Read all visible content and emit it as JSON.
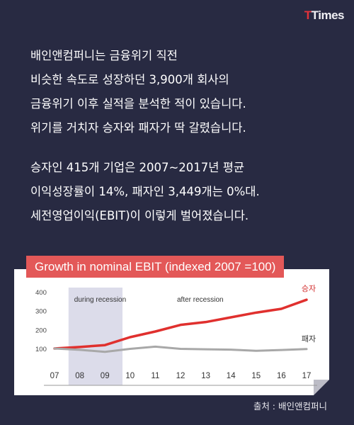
{
  "logo": {
    "prefix": "T",
    "rest": "Times"
  },
  "body_text": {
    "paragraph1": [
      "배인앤컴퍼니는 금융위기 직전",
      "비슷한 속도로 성장하던 3,900개 회사의",
      "금융위기 이후 실적을 분석한 적이 있습니다.",
      "위기를 거치자 승자와 패자가 딱 갈렸습니다."
    ],
    "paragraph2": [
      "승자인 415개 기업은 2007~2017년 평균",
      "이익성장률이 14%, 패자인 3,449개는 0%대.",
      "세전영업이익(EBIT)이 이렇게 벌어졌습니다."
    ]
  },
  "colors": {
    "background": "#282a42",
    "winner": "#e0302e",
    "loser": "#a8a8a8",
    "accent": "#e35858",
    "shade": "#dcdcea"
  },
  "chart_data": {
    "type": "line",
    "title": "Growth in nominal EBIT (indexed 2007 =100)",
    "categories": [
      "07",
      "08",
      "09",
      "10",
      "11",
      "12",
      "13",
      "14",
      "15",
      "16",
      "17"
    ],
    "ylim": [
      0,
      400
    ],
    "yticks": [
      100,
      200,
      300,
      400
    ],
    "series": [
      {
        "name": "승자",
        "values": [
          100,
          108,
          118,
          160,
          190,
          225,
          240,
          265,
          290,
          310,
          358
        ]
      },
      {
        "name": "패자",
        "values": [
          100,
          93,
          82,
          98,
          110,
          98,
          96,
          94,
          88,
          92,
          97
        ]
      }
    ],
    "shaded_region": {
      "label": "during recession",
      "from": "08",
      "to": "09"
    },
    "annotations": [
      "after recession"
    ],
    "grid": false
  },
  "source": "출처 : 배인앤컴퍼니"
}
